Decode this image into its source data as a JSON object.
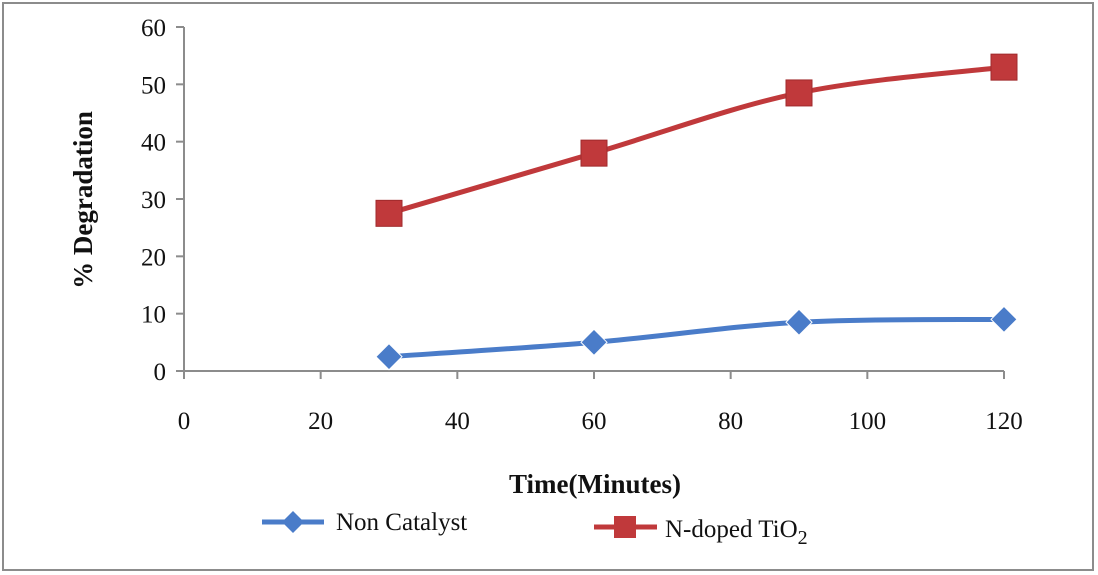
{
  "chart_data": {
    "type": "line",
    "title": "",
    "xlabel": "Time(Minutes)",
    "ylabel": "% Degradation",
    "xlim": [
      0,
      120
    ],
    "ylim": [
      0,
      60
    ],
    "xticks": [
      0,
      20,
      40,
      60,
      80,
      100,
      120
    ],
    "yticks": [
      0,
      10,
      20,
      30,
      40,
      50,
      60
    ],
    "x_tick_labels": [
      "0",
      "20",
      "40",
      "60",
      "80",
      "100",
      "120"
    ],
    "y_tick_labels": [
      "0",
      "10",
      "20",
      "30",
      "40",
      "50",
      "60"
    ],
    "grid": false,
    "smooth": true,
    "legend_position": "bottom",
    "series": [
      {
        "name": "Non Catalyst",
        "marker": "diamond",
        "color": "#4a7cc9",
        "x": [
          30,
          60,
          90,
          120
        ],
        "y": [
          2.5,
          5,
          8.5,
          9
        ]
      },
      {
        "name": "N-doped TiO",
        "name_subscript": "2",
        "marker": "square",
        "color": "#c0393b",
        "x": [
          30,
          60,
          90,
          120
        ],
        "y": [
          27.5,
          38,
          48.5,
          53
        ]
      }
    ]
  }
}
